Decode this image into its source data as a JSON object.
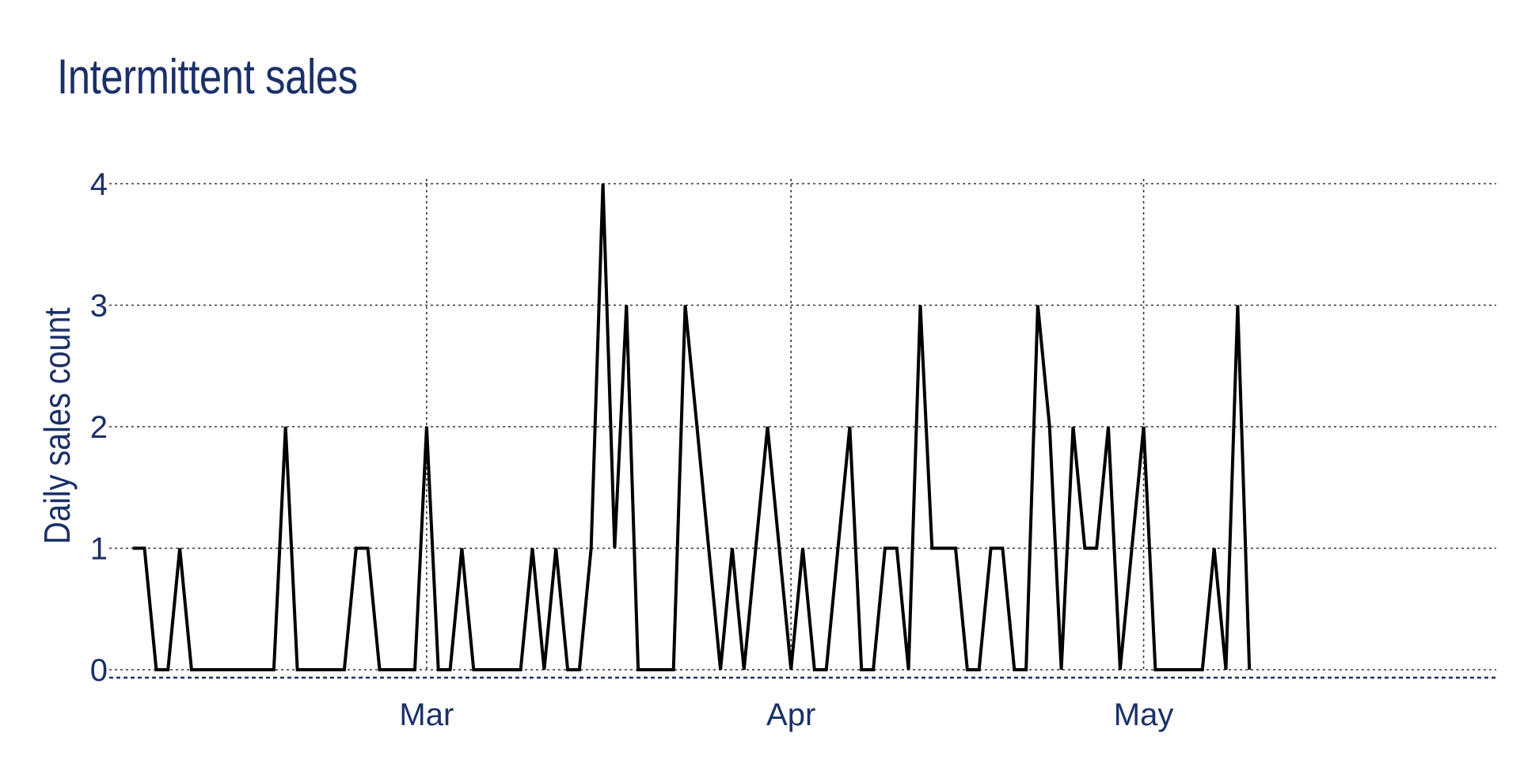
{
  "chart_data": {
    "type": "line",
    "title": "Intermittent sales",
    "xlabel": "",
    "ylabel": "Daily sales count",
    "x_tick_labels": [
      "Mar",
      "Apr",
      "May"
    ],
    "x_tick_dates": [
      "2020-03-01",
      "2020-04-01",
      "2020-05-01"
    ],
    "y_ticks": [
      "0",
      "1",
      "2",
      "3",
      "4"
    ],
    "ylim": [
      0,
      4
    ],
    "xlim": [
      "2020-02-03",
      "2020-05-31"
    ],
    "grid": true,
    "legend": "none",
    "colors": {
      "text": "#1b3068",
      "line": "#000000",
      "grid": "#333333"
    },
    "series": [
      {
        "start_date": "2020-02-05",
        "values": [
          1,
          1,
          0,
          0,
          1,
          0,
          0,
          0,
          0,
          0,
          0,
          0,
          0,
          2,
          0,
          0,
          0,
          0,
          0,
          1,
          1,
          0,
          0,
          0,
          0,
          2,
          0,
          0,
          1,
          0,
          0,
          0,
          0,
          0,
          1,
          0,
          1,
          0,
          0,
          1,
          4,
          1,
          3,
          0,
          0,
          0,
          0,
          3,
          2,
          1,
          0,
          1,
          0,
          1,
          2,
          1,
          0,
          1,
          0,
          0,
          1,
          2,
          0,
          0,
          1,
          1,
          0,
          3,
          1,
          1,
          1,
          0,
          0,
          1,
          1,
          0,
          0,
          3,
          2,
          0,
          2,
          1,
          1,
          2,
          0,
          1,
          2,
          0,
          0,
          0,
          0,
          0,
          1,
          0,
          3,
          0
        ]
      }
    ]
  }
}
